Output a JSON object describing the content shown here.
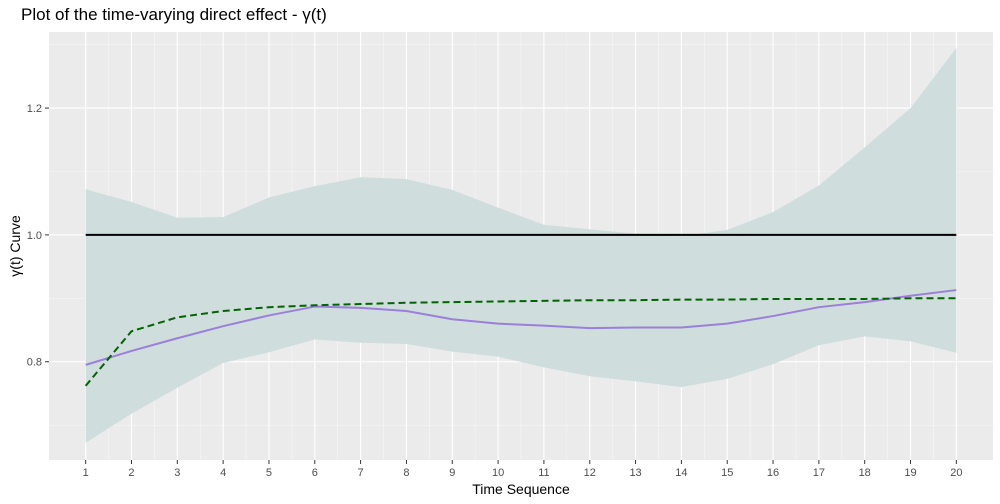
{
  "chart_data": {
    "type": "line",
    "title": "Plot of the time-varying direct effect - γ(t)",
    "xlabel": "Time Sequence",
    "ylabel": "γ(t) Curve",
    "xlim": [
      0.2,
      20.8
    ],
    "ylim": [
      0.645,
      1.32
    ],
    "x": [
      1,
      2,
      3,
      4,
      5,
      6,
      7,
      8,
      9,
      10,
      11,
      12,
      13,
      14,
      15,
      16,
      17,
      18,
      19,
      20
    ],
    "x_ticks": [
      1,
      2,
      3,
      4,
      5,
      6,
      7,
      8,
      9,
      10,
      11,
      12,
      13,
      14,
      15,
      16,
      17,
      18,
      19,
      20
    ],
    "y_ticks": [
      0.8,
      1.0,
      1.2
    ],
    "y_tick_labels": [
      "0.8",
      "1.0",
      "1.2"
    ],
    "grid": true,
    "legend": "none",
    "band": {
      "lower": [
        0.672,
        0.718,
        0.759,
        0.798,
        0.815,
        0.835,
        0.83,
        0.828,
        0.816,
        0.808,
        0.791,
        0.777,
        0.769,
        0.76,
        0.773,
        0.796,
        0.826,
        0.84,
        0.832,
        0.814
      ],
      "upper": [
        1.072,
        1.052,
        1.027,
        1.028,
        1.059,
        1.077,
        1.091,
        1.088,
        1.071,
        1.043,
        1.016,
        1.009,
        1.002,
        0.998,
        1.008,
        1.036,
        1.078,
        1.138,
        1.2,
        1.295
      ],
      "color": "#cfdedc"
    },
    "series": [
      {
        "style": "solid",
        "color": "#000000",
        "values": [
          1.0,
          1.0,
          1.0,
          1.0,
          1.0,
          1.0,
          1.0,
          1.0,
          1.0,
          1.0,
          1.0,
          1.0,
          1.0,
          1.0,
          1.0,
          1.0,
          1.0,
          1.0,
          1.0,
          1.0
        ]
      },
      {
        "style": "solid",
        "color": "#9b7fd9",
        "values": [
          0.795,
          0.817,
          0.837,
          0.856,
          0.873,
          0.887,
          0.885,
          0.88,
          0.867,
          0.86,
          0.857,
          0.853,
          0.854,
          0.854,
          0.86,
          0.872,
          0.886,
          0.894,
          0.904,
          0.913
        ]
      },
      {
        "style": "dashed",
        "color": "#006400",
        "x": [
          1,
          2,
          3,
          4,
          5,
          6,
          7,
          8,
          9,
          10,
          11,
          12,
          13,
          14,
          15,
          16,
          17,
          18,
          19,
          20
        ],
        "values": [
          0.762,
          0.848,
          0.87,
          0.88,
          0.886,
          0.889,
          0.891,
          0.893,
          0.894,
          0.895,
          0.896,
          0.897,
          0.897,
          0.898,
          0.898,
          0.899,
          0.899,
          0.899,
          0.9,
          0.9
        ]
      }
    ]
  }
}
